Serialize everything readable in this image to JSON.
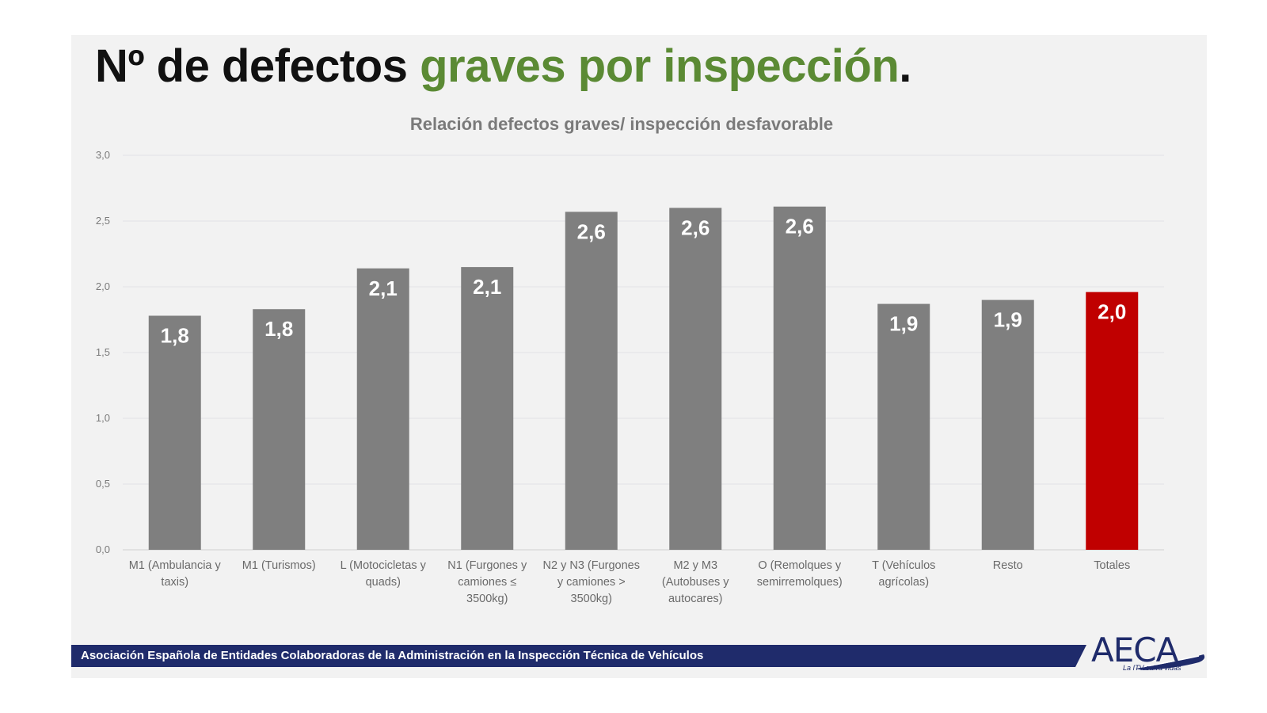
{
  "slide": {
    "title_part1": "Nº de defectos",
    "title_part2": "graves por inspección",
    "title_part3": ".",
    "footer": "Asociación Española de Entidades Colaboradoras de la Administración en la Inspección Técnica de Vehículos",
    "logo_text": "AECA",
    "logo_tagline": "La ITV salva vidas"
  },
  "colors": {
    "title_green": "#5b8a34",
    "bar_default": "#7f7f7f",
    "bar_highlight": "#c00000",
    "footer_band": "#1f2b6b"
  },
  "chart_data": {
    "type": "bar",
    "title": "Relación defectos graves/ inspección desfavorable",
    "xlabel": "",
    "ylabel": "",
    "ylim": [
      0,
      3
    ],
    "yticks": [
      "0,0",
      "0,5",
      "1,0",
      "1,5",
      "2,0",
      "2,5",
      "3,0"
    ],
    "grid": true,
    "categories": [
      [
        "M1 (Ambulancia y",
        "taxis)"
      ],
      [
        "M1 (Turismos)"
      ],
      [
        "L (Motocicletas y",
        "quads)"
      ],
      [
        "N1 (Furgones y",
        "camiones ≤",
        "3500kg)"
      ],
      [
        "N2 y N3 (Furgones",
        "y camiones >",
        "3500kg)"
      ],
      [
        "M2 y M3",
        "(Autobuses y",
        "autocares)"
      ],
      [
        "O (Remolques y",
        "semirremolques)"
      ],
      [
        "T (Vehículos",
        "agrícolas)"
      ],
      [
        "Resto"
      ],
      [
        "Totales"
      ]
    ],
    "values": [
      1.78,
      1.83,
      2.14,
      2.15,
      2.57,
      2.6,
      2.61,
      1.87,
      1.9,
      1.96
    ],
    "labels": [
      "1,8",
      "1,8",
      "2,1",
      "2,1",
      "2,6",
      "2,6",
      "2,6",
      "1,9",
      "1,9",
      "2,0"
    ],
    "highlight_index": 9
  }
}
